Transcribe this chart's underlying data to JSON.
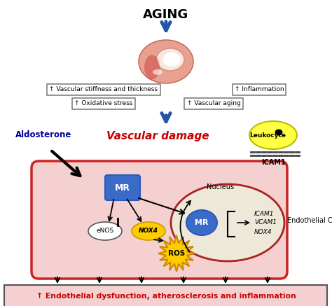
{
  "title": "AGING",
  "box1_text": "↑ Vascular stiffness and thickness",
  "box2_text": "↑ Inflammation",
  "box3_text": "↑ Oxidative stress",
  "box4_text": "↑ Vascular aging",
  "vascular_damage_text": "Vascular damage",
  "aldosterone_text": "Aldosterone",
  "leukocyte_text": "Leukocyte",
  "icam1_text": "ICAM1",
  "nucleus_text": "Nucleus",
  "endothelial_text": "Endothelial Cell",
  "mr_text": "MR",
  "enos_text": "eNOS",
  "nox4_text": "NOX4",
  "ros_text": "ROS",
  "gene1": "ICAM1",
  "gene2": "VCAM1",
  "gene3": "NOX4",
  "bottom_text": "↑ Endothelial dysfunction, atherosclerosis and inflammation",
  "bg_color": "#ffffff",
  "cell_fill": "#f5d0d0",
  "cell_edge": "#cc2222",
  "nucleus_fill": "#ede8d8",
  "nucleus_edge": "#aa2222",
  "mr_box_fill": "#3a6bc9",
  "mr_box_edge": "#2a5bb9",
  "mr_text_color": "#ffffff",
  "leukocyte_fill": "#ffff44",
  "leukocyte_edge": "#bbbb00",
  "enos_fill": "#ffffff",
  "enos_edge": "#555555",
  "nox4_fill": "#ffcc00",
  "nox4_edge": "#cc9900",
  "ros_fill": "#ffcc00",
  "ros_edge": "#cc8800",
  "arrow_blue": "#2255aa",
  "arrow_black": "#111111",
  "aldosterone_color": "#000099",
  "vascular_damage_color": "#cc0000",
  "bottom_box_fill": "#f5d0d0",
  "bottom_box_edge": "#555555"
}
